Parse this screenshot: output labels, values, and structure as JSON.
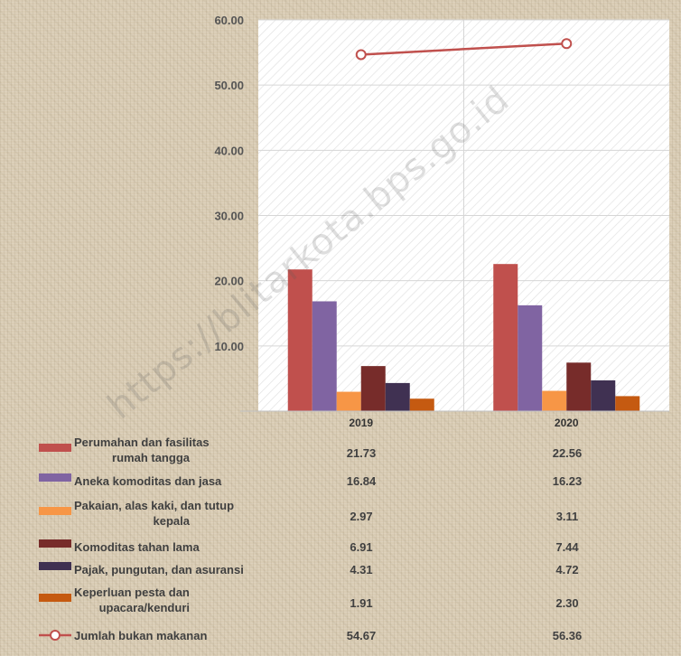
{
  "chart_data": {
    "type": "bar",
    "categories": [
      "2019",
      "2020"
    ],
    "ylim": [
      0,
      60
    ],
    "yticks": [
      "60.00",
      "50.00",
      "40.00",
      "30.00",
      "20.00",
      "10.00"
    ],
    "grid": true,
    "legend": "table-below",
    "series": [
      {
        "name": "Perumahan dan fasilitas rumah tangga",
        "label_lines": [
          "Perumahan dan fasilitas",
          "rumah tangga"
        ],
        "type": "bar",
        "color": "#c0504d",
        "values": [
          21.73,
          22.56
        ],
        "display": [
          "21.73",
          "22.56"
        ]
      },
      {
        "name": "Aneka komoditas dan jasa",
        "label_lines": [
          "Aneka komoditas dan jasa"
        ],
        "type": "bar",
        "color": "#8064a2",
        "values": [
          16.84,
          16.23
        ],
        "display": [
          "16.84",
          "16.23"
        ]
      },
      {
        "name": "Pakaian, alas kaki, dan tutup kepala",
        "label_lines": [
          "Pakaian, alas kaki, dan tutup",
          "kepala"
        ],
        "type": "bar",
        "color": "#f79646",
        "values": [
          2.97,
          3.11
        ],
        "display": [
          "2.97",
          "3.11"
        ]
      },
      {
        "name": "Komoditas tahan lama",
        "label_lines": [
          "Komoditas tahan lama"
        ],
        "type": "bar",
        "color": "#772c2a",
        "values": [
          6.91,
          7.44
        ],
        "display": [
          "6.91",
          "7.44"
        ]
      },
      {
        "name": "Pajak, pungutan, dan asuransi",
        "label_lines": [
          "Pajak, pungutan, dan asuransi"
        ],
        "type": "bar",
        "color": "#403152",
        "values": [
          4.31,
          4.72
        ],
        "display": [
          "4.31",
          "4.72"
        ]
      },
      {
        "name": "Keperluan pesta dan upacara/kenduri",
        "label_lines": [
          "Keperluan pesta dan",
          "upacara/kenduri"
        ],
        "type": "bar",
        "color": "#c55a11",
        "values": [
          1.91,
          2.3
        ],
        "display": [
          "1.91",
          "2.30"
        ]
      },
      {
        "name": "Jumlah bukan makanan",
        "label_lines": [
          "Jumlah bukan makanan"
        ],
        "type": "line",
        "color": "#c0504d",
        "values": [
          54.67,
          56.36
        ],
        "display": [
          "54.67",
          "56.36"
        ]
      }
    ]
  },
  "watermark": "https://blitarkota.bps.go.id"
}
